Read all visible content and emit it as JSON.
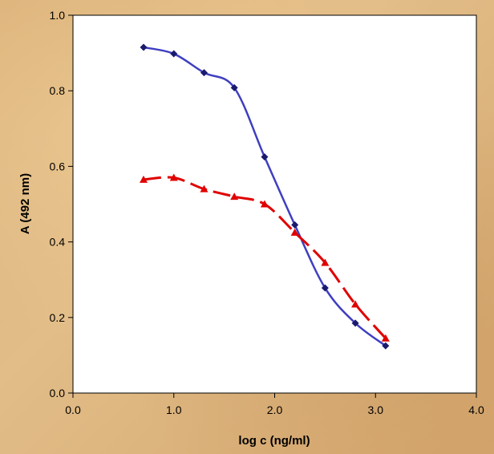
{
  "chart_data": {
    "type": "scatter",
    "title": "",
    "xlabel": "log c (ng/ml)",
    "ylabel": "A (492 nm)",
    "xlim": [
      0,
      4
    ],
    "ylim": [
      0,
      1
    ],
    "x_ticks": [
      0,
      1,
      2,
      3,
      4
    ],
    "y_ticks": [
      0,
      0.2,
      0.4,
      0.6,
      0.8,
      1.0
    ],
    "x_tick_labels": [
      "0.0",
      "1.0",
      "2.0",
      "3.0",
      "4.0"
    ],
    "y_tick_labels": [
      "0.0",
      "0.2",
      "0.4",
      "0.6",
      "0.8",
      "1.0"
    ],
    "grid": false,
    "legend": "none",
    "series": [
      {
        "marker": "diamond",
        "marker_color": "#1a1a6e",
        "line_color": "#3f3fc0",
        "line_style": "solid",
        "fit_curve": true,
        "x": [
          0.7,
          1.0,
          1.3,
          1.6,
          1.9,
          2.2,
          2.5,
          2.8,
          3.1
        ],
        "y": [
          0.915,
          0.898,
          0.848,
          0.808,
          0.625,
          0.445,
          0.278,
          0.185,
          0.125
        ]
      },
      {
        "marker": "triangle",
        "marker_color": "#e00000",
        "line_color": "#e00000",
        "line_style": "dashed",
        "fit_curve": true,
        "x": [
          0.7,
          1.0,
          1.3,
          1.6,
          1.9,
          2.2,
          2.5,
          2.8,
          3.1
        ],
        "y": [
          0.565,
          0.57,
          0.54,
          0.52,
          0.5,
          0.425,
          0.345,
          0.235,
          0.145
        ]
      }
    ]
  }
}
